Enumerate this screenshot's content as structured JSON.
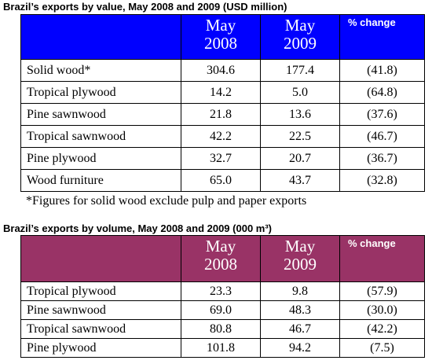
{
  "value_table": {
    "title": "Brazil’s exports by value, May 2008 and 2009 (USD million)",
    "header": {
      "col1_line1": "May",
      "col1_line2": "2008",
      "col2_line1": "May",
      "col2_line2": "2009",
      "col3": "% change",
      "color": "#0000ff"
    },
    "rows": [
      {
        "label": "Solid wood*",
        "v2008": "304.6",
        "v2009": "177.4",
        "change": "(41.8)"
      },
      {
        "label": "Tropical plywood",
        "v2008": "14.2",
        "v2009": "5.0",
        "change": "(64.8)"
      },
      {
        "label": "Pine sawnwood",
        "v2008": "21.8",
        "v2009": "13.6",
        "change": "(37.6)"
      },
      {
        "label": "Tropical sawnwood",
        "v2008": "42.2",
        "v2009": "22.5",
        "change": "(46.7)"
      },
      {
        "label": "Pine plywood",
        "v2008": "32.7",
        "v2009": "20.7",
        "change": "(36.7)"
      },
      {
        "label": "Wood furniture",
        "v2008": "65.0",
        "v2009": "43.7",
        "change": "(32.8)"
      }
    ],
    "footnote": "*Figures for solid wood exclude pulp and paper exports"
  },
  "volume_table": {
    "title": "Brazil’s exports by volume, May 2008 and 2009 (000 m³)",
    "header": {
      "col1_line1": "May",
      "col1_line2": "2008",
      "col2_line1": "May",
      "col2_line2": "2009",
      "col3": "% change",
      "color": "#993366"
    },
    "rows": [
      {
        "label": "Tropical plywood",
        "v2008": "23.3",
        "v2009": "9.8",
        "change": "(57.9)"
      },
      {
        "label": "Pine sawnwood",
        "v2008": "69.0",
        "v2009": "48.3",
        "change": "(30.0)"
      },
      {
        "label": "Tropical sawnwood",
        "v2008": "80.8",
        "v2009": "46.7",
        "change": "(42.2)"
      },
      {
        "label": "Pine plywood",
        "v2008": "101.8",
        "v2009": "94.2",
        "change": "(7.5)"
      }
    ]
  }
}
